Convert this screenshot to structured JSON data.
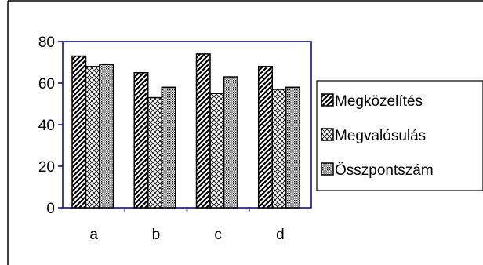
{
  "chart_data": {
    "type": "bar",
    "categories": [
      "a",
      "b",
      "c",
      "d"
    ],
    "series": [
      {
        "name": "Megközelítés",
        "values": [
          73,
          65,
          74,
          68
        ],
        "pattern": "diagonal-hatch"
      },
      {
        "name": "Megvalósulás",
        "values": [
          68,
          53,
          55,
          57
        ],
        "pattern": "crosshatch"
      },
      {
        "name": "Összpontszám",
        "values": [
          69,
          58,
          63,
          58
        ],
        "pattern": "dots"
      }
    ],
    "ylim": [
      0,
      80
    ],
    "yticks": [
      0,
      20,
      40,
      60,
      80
    ],
    "title": "",
    "xlabel": "",
    "ylabel": "",
    "grid": false,
    "legend_position": "right",
    "colors": {
      "axis": "#000080",
      "frame": "#000000",
      "bar_stroke": "#000000",
      "background": "#ffffff"
    }
  }
}
